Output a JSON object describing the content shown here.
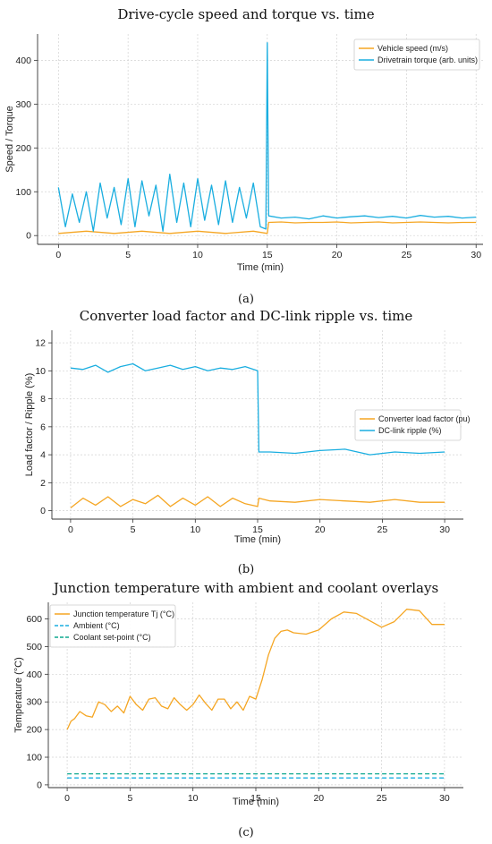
{
  "chart_data": [
    {
      "id": "a",
      "type": "line",
      "title": "Drive-cycle speed and torque vs. time",
      "xlabel": "Time (min)",
      "ylabel": "Speed / Torque",
      "caption": "(a)",
      "xlim": [
        -1.5,
        30.5
      ],
      "ylim": [
        -20,
        460
      ],
      "x_ticks": [
        0,
        5,
        10,
        15,
        20,
        25,
        30
      ],
      "y_ticks": [
        0,
        100,
        200,
        300,
        400
      ],
      "grid": true,
      "legend_position": "top-right",
      "colors": {
        "speed": "#f5a623",
        "torque": "#1aaee0"
      },
      "series": [
        {
          "name": "Vehicle speed (m/s)",
          "color": "#f5a623",
          "x": [
            0,
            2,
            4,
            6,
            8,
            10,
            12,
            14,
            15,
            15.1,
            16,
            17,
            18,
            19,
            20,
            21,
            22,
            23,
            24,
            25,
            26,
            27,
            28,
            29,
            30
          ],
          "y": [
            5,
            10,
            5,
            10,
            5,
            10,
            5,
            10,
            5,
            30,
            31,
            29,
            30,
            30,
            31,
            29,
            30,
            31,
            29,
            30,
            31,
            30,
            29,
            30,
            30
          ]
        },
        {
          "name": "Drivetrain torque (arb. units)",
          "color": "#1aaee0",
          "x": [
            0,
            0.5,
            1,
            1.5,
            2,
            2.5,
            3,
            3.5,
            4,
            4.5,
            5,
            5.5,
            6,
            6.5,
            7,
            7.5,
            8,
            8.5,
            9,
            9.5,
            10,
            10.5,
            11,
            11.5,
            12,
            12.5,
            13,
            13.5,
            14,
            14.5,
            14.9,
            15,
            15.1,
            16,
            17,
            18,
            19,
            20,
            21,
            22,
            23,
            24,
            25,
            26,
            27,
            28,
            29,
            30
          ],
          "y": [
            110,
            20,
            95,
            30,
            100,
            10,
            120,
            40,
            110,
            25,
            130,
            20,
            125,
            45,
            115,
            10,
            140,
            30,
            120,
            20,
            130,
            35,
            115,
            25,
            125,
            30,
            110,
            40,
            120,
            20,
            15,
            440,
            45,
            40,
            42,
            38,
            45,
            40,
            43,
            45,
            41,
            44,
            40,
            46,
            42,
            44,
            40,
            42
          ]
        }
      ]
    },
    {
      "id": "b",
      "type": "line",
      "title": "Converter load factor and DC-link ripple vs. time",
      "xlabel": "Time (min)",
      "ylabel": "Load factor / Ripple (%)",
      "caption": "(b)",
      "xlim": [
        -1.5,
        31.5
      ],
      "ylim": [
        -0.6,
        12.9
      ],
      "x_ticks": [
        0,
        5,
        10,
        15,
        20,
        25,
        30
      ],
      "y_ticks": [
        0,
        2,
        4,
        6,
        8,
        10,
        12
      ],
      "grid": true,
      "legend_position": "center-right",
      "colors": {
        "load": "#f5a623",
        "ripple": "#1aaee0"
      },
      "series": [
        {
          "name": "Converter load factor (pu)",
          "color": "#f5a623",
          "x": [
            0,
            1,
            2,
            3,
            4,
            5,
            6,
            7,
            8,
            9,
            10,
            11,
            12,
            13,
            14,
            15,
            15.1,
            16,
            18,
            20,
            22,
            24,
            26,
            28,
            30
          ],
          "y": [
            0.2,
            0.9,
            0.4,
            1.0,
            0.3,
            0.8,
            0.5,
            1.1,
            0.3,
            0.9,
            0.4,
            1.0,
            0.3,
            0.9,
            0.5,
            0.3,
            0.9,
            0.7,
            0.6,
            0.8,
            0.7,
            0.6,
            0.8,
            0.6,
            0.6
          ]
        },
        {
          "name": "DC-link ripple (%)",
          "color": "#1aaee0",
          "x": [
            0,
            1,
            2,
            3,
            4,
            5,
            6,
            7,
            8,
            9,
            10,
            11,
            12,
            13,
            14,
            15,
            15.1,
            16,
            18,
            20,
            22,
            24,
            26,
            28,
            30
          ],
          "y": [
            10.2,
            10.1,
            10.4,
            9.9,
            10.3,
            10.5,
            10.0,
            10.2,
            10.4,
            10.1,
            10.3,
            10.0,
            10.2,
            10.1,
            10.3,
            10.0,
            4.2,
            4.2,
            4.1,
            4.3,
            4.4,
            4.0,
            4.2,
            4.1,
            4.2
          ]
        }
      ]
    },
    {
      "id": "c",
      "type": "line",
      "title": "Junction temperature with ambient and coolant overlays",
      "xlabel": "Time (min)",
      "ylabel": "Temperature (°C)",
      "caption": "(c)",
      "xlim": [
        -1.5,
        31.5
      ],
      "ylim": [
        -10,
        660
      ],
      "x_ticks": [
        0,
        5,
        10,
        15,
        20,
        25,
        30
      ],
      "y_ticks": [
        0,
        100,
        200,
        300,
        400,
        500,
        600
      ],
      "grid": true,
      "legend_position": "top-left",
      "colors": {
        "tj": "#f5a623",
        "ambient": "#1aaee0",
        "coolant": "#0fa88f"
      },
      "series": [
        {
          "name": "Junction temperature Tj (°C)",
          "color": "#f5a623",
          "style": "solid",
          "x": [
            0,
            0.3,
            0.6,
            1.0,
            1.5,
            2.0,
            2.5,
            3.0,
            3.5,
            4.0,
            4.5,
            5.0,
            5.5,
            6.0,
            6.5,
            7.0,
            7.5,
            8.0,
            8.5,
            9.0,
            9.5,
            10.0,
            10.5,
            11.0,
            11.5,
            12.0,
            12.5,
            13.0,
            13.5,
            14.0,
            14.5,
            15.0,
            15.5,
            16.0,
            16.5,
            17.0,
            17.5,
            18.0,
            19.0,
            20.0,
            21.0,
            22.0,
            23.0,
            24.0,
            25.0,
            26.0,
            27.0,
            28.0,
            29.0,
            30.0
          ],
          "y": [
            200,
            230,
            240,
            265,
            250,
            245,
            300,
            290,
            265,
            285,
            260,
            320,
            290,
            270,
            310,
            315,
            285,
            275,
            315,
            290,
            270,
            290,
            325,
            295,
            270,
            310,
            310,
            275,
            300,
            270,
            320,
            310,
            380,
            470,
            530,
            555,
            560,
            550,
            545,
            560,
            600,
            625,
            620,
            595,
            570,
            590,
            635,
            630,
            580,
            580
          ]
        },
        {
          "name": "Ambient (°C)",
          "color": "#1aaee0",
          "style": "dashed",
          "x": [
            0,
            30
          ],
          "y": [
            25,
            25
          ]
        },
        {
          "name": "Coolant set-point (°C)",
          "color": "#0fa88f",
          "style": "dashed",
          "x": [
            0,
            30
          ],
          "y": [
            40,
            40
          ]
        }
      ]
    }
  ]
}
